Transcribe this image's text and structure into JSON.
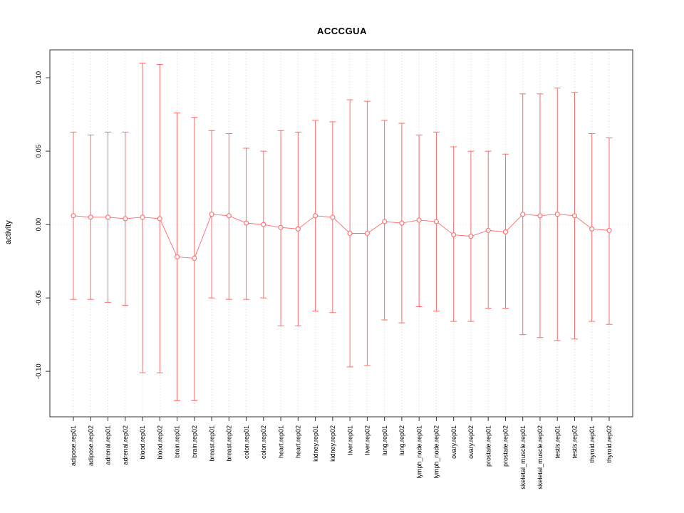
{
  "chart_data": {
    "type": "line",
    "subtype": "points-with-error-bars",
    "title": "ACCCGUA",
    "xlabel": "",
    "ylabel": "activity",
    "categories": [
      "adipose.rep01",
      "adipose.rep02",
      "adrenal.rep01",
      "adrenal.rep02",
      "blood.rep01",
      "blood.rep02",
      "brain.rep01",
      "brain.rep02",
      "breast.rep01",
      "breast.rep02",
      "colon.rep01",
      "colon.rep02",
      "heart.rep01",
      "heart.rep02",
      "kidney.rep01",
      "kidney.rep02",
      "liver.rep01",
      "liver.rep02",
      "lung.rep01",
      "lung.rep02",
      "lymph_node.rep01",
      "lymph_node.rep02",
      "ovary.rep01",
      "ovary.rep02",
      "prostate.rep01",
      "prostate.rep02",
      "skeletal_muscle.rep01",
      "skeletal_muscle.rep02",
      "testis.rep01",
      "testis.rep02",
      "thyroid.rep01",
      "thyroid.rep02"
    ],
    "series": [
      {
        "name": "activity",
        "center": [
          0.006,
          0.005,
          0.005,
          0.004,
          0.005,
          0.004,
          -0.022,
          -0.023,
          0.007,
          0.006,
          0.001,
          0.0,
          -0.002,
          -0.003,
          0.006,
          0.005,
          -0.006,
          -0.006,
          0.002,
          0.001,
          0.003,
          0.002,
          -0.007,
          -0.008,
          -0.004,
          -0.005,
          0.007,
          0.006,
          0.007,
          0.006,
          -0.003,
          -0.004
        ],
        "upper": [
          0.063,
          0.061,
          0.063,
          0.063,
          0.11,
          0.109,
          0.076,
          0.073,
          0.064,
          0.062,
          0.052,
          0.05,
          0.064,
          0.063,
          0.071,
          0.07,
          0.085,
          0.084,
          0.071,
          0.069,
          0.061,
          0.063,
          0.053,
          0.05,
          0.05,
          0.048,
          0.089,
          0.089,
          0.093,
          0.09,
          0.062,
          0.059
        ],
        "lower": [
          -0.051,
          -0.051,
          -0.053,
          -0.055,
          -0.101,
          -0.101,
          -0.12,
          -0.12,
          -0.05,
          -0.051,
          -0.051,
          -0.05,
          -0.069,
          -0.069,
          -0.059,
          -0.06,
          -0.097,
          -0.096,
          -0.065,
          -0.067,
          -0.056,
          -0.059,
          -0.066,
          -0.066,
          -0.057,
          -0.057,
          -0.075,
          -0.077,
          -0.079,
          -0.078,
          -0.066,
          -0.068
        ]
      }
    ],
    "ylim": [
      -0.131,
      0.119
    ],
    "yticks": [
      -0.1,
      -0.05,
      0.0,
      0.05,
      0.1
    ],
    "grid": "vertical-dotted-per-category-plus-zero-line",
    "legend": "none",
    "colors": {
      "series": "#ff6a6a",
      "grid": "#d8d8d8",
      "zero_line": "#dedede",
      "axis": "#333333",
      "background": "#ffffff"
    }
  }
}
